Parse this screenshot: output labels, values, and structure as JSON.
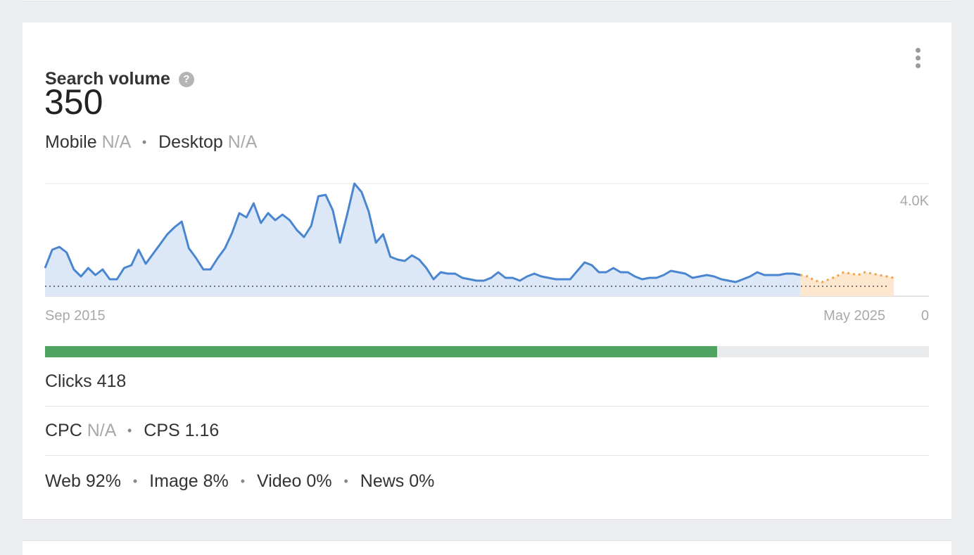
{
  "widget": {
    "title": "Search volume",
    "help_glyph": "?",
    "volume": "350",
    "mobile_label": "Mobile",
    "mobile_value": "N/A",
    "desktop_label": "Desktop",
    "desktop_value": "N/A",
    "separator": "•"
  },
  "metrics": {
    "clicks_label": "Clicks",
    "clicks_value": "418",
    "clicks_fraction": 0.76,
    "cpc_label": "CPC",
    "cpc_value": "N/A",
    "cps_label": "CPS",
    "cps_value": "1.16",
    "web_label": "Web",
    "web_value": "92%",
    "image_label": "Image",
    "image_value": "8%",
    "video_label": "Video",
    "video_value": "0%",
    "news_label": "News",
    "news_value": "0%"
  },
  "colors": {
    "history_line": "#4a86d0",
    "history_fill": "#dce8f7",
    "forecast_line": "#f3a046",
    "forecast_fill": "#fde7cf",
    "clicks_bar": "#4ea262"
  },
  "chart_data": {
    "type": "area",
    "x_start_label": "Sep 2015",
    "x_end_label": "May 2025",
    "y_max_label": "4.0K",
    "y_min_label": "0",
    "ylim": [
      0,
      4000
    ],
    "reference_value": 350,
    "history": [
      1000,
      1650,
      1750,
      1550,
      950,
      700,
      1000,
      750,
      950,
      600,
      600,
      1000,
      1100,
      1650,
      1150,
      1500,
      1850,
      2200,
      2450,
      2650,
      1700,
      1350,
      950,
      950,
      1350,
      1700,
      2250,
      2950,
      2800,
      3300,
      2600,
      2950,
      2700,
      2900,
      2700,
      2350,
      2100,
      2500,
      3550,
      3600,
      3050,
      1900,
      2900,
      4000,
      3700,
      3000,
      1900,
      2200,
      1400,
      1300,
      1250,
      1450,
      1300,
      1000,
      600,
      850,
      800,
      800,
      650,
      600,
      550,
      550,
      650,
      850,
      650,
      650,
      550,
      700,
      800,
      700,
      650,
      600,
      600,
      600,
      900,
      1200,
      1100,
      850,
      850,
      1000,
      850,
      850,
      700,
      600,
      650,
      650,
      750,
      900,
      850,
      800,
      650,
      700,
      750,
      700,
      600,
      550,
      500,
      600,
      700,
      850,
      750,
      750,
      750,
      800,
      800,
      750
    ],
    "forecast": [
      700,
      550,
      500,
      600,
      700,
      850,
      800,
      750,
      850,
      800,
      750,
      700,
      650
    ]
  }
}
